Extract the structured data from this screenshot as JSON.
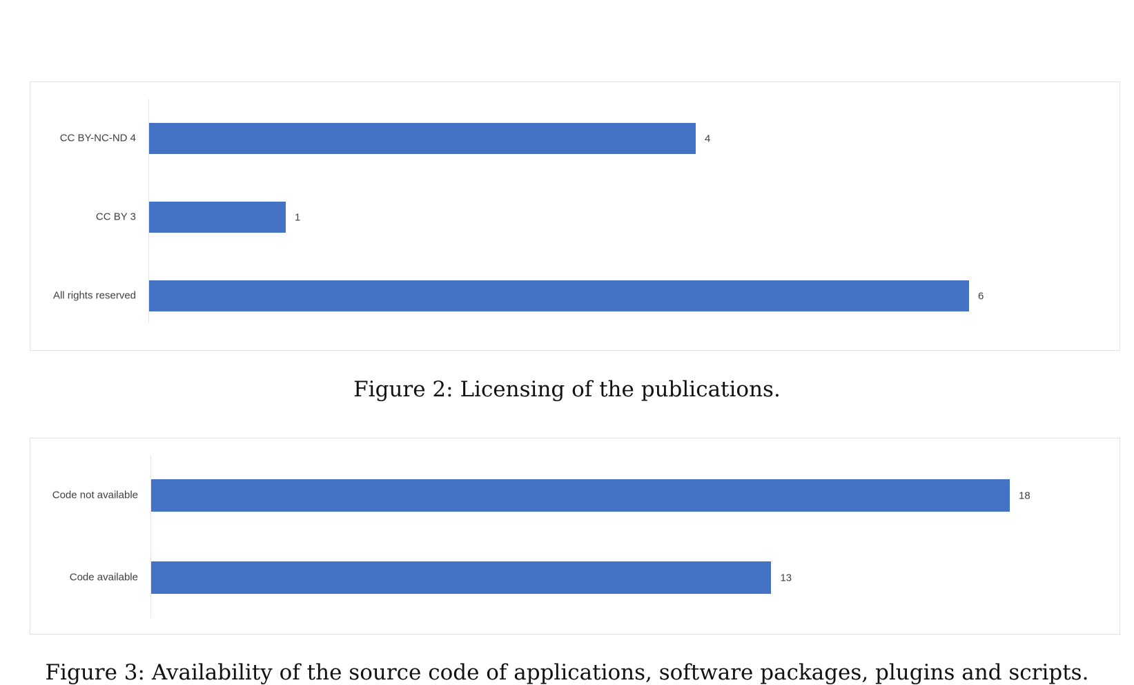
{
  "chart_data": [
    {
      "type": "bar",
      "orientation": "horizontal",
      "categories": [
        "CC BY-NC-ND 4",
        "CC BY 3",
        "All rights reserved"
      ],
      "values": [
        4,
        1,
        6
      ],
      "data_labels": [
        "4",
        "1",
        "6"
      ],
      "xlim": [
        0,
        6
      ],
      "grid": false,
      "color": "#4472c4"
    },
    {
      "type": "bar",
      "orientation": "horizontal",
      "categories": [
        "Code not available",
        "Code available"
      ],
      "values": [
        18,
        13
      ],
      "data_labels": [
        "18",
        "13"
      ],
      "xlim": [
        0,
        18
      ],
      "grid": false,
      "color": "#4472c4"
    }
  ],
  "captions": {
    "figure2": "Figure 2: Licensing of the publications.",
    "figure3": "Figure 3: Availability of the source code of applications, software packages, plugins and scripts."
  }
}
